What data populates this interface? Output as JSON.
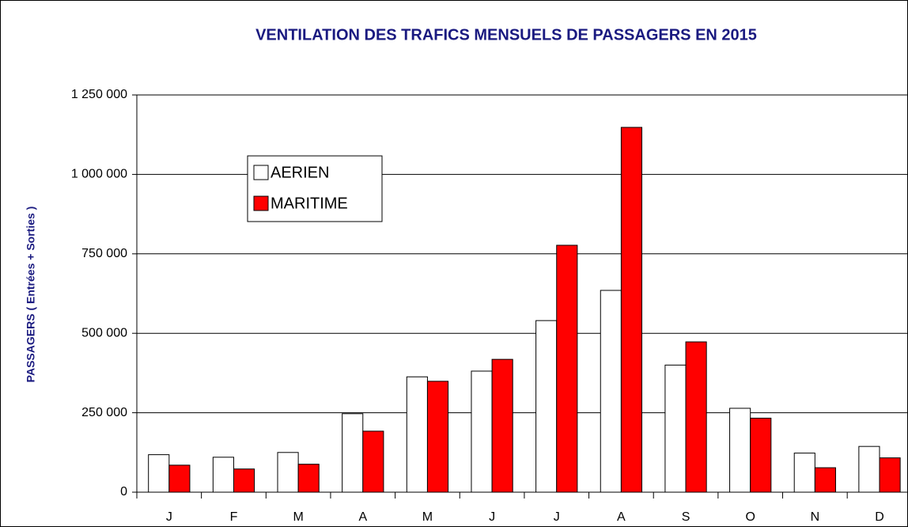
{
  "chart_data": {
    "type": "bar",
    "title": "VENTILATION DES TRAFICS MENSUELS DE PASSAGERS EN 2015",
    "y_label": "PASSAGERS  ( Entrées + Sorties )",
    "categories": [
      "J",
      "F",
      "M",
      "A",
      "M",
      "J",
      "J",
      "A",
      "S",
      "O",
      "N",
      "D"
    ],
    "series": [
      {
        "name": "AERIEN",
        "color": "#ffffff",
        "values": [
          118000,
          110000,
          125000,
          247000,
          363000,
          381000,
          540000,
          635000,
          400000,
          264000,
          123000,
          144000
        ]
      },
      {
        "name": "MARITIME",
        "color": "#ff0000",
        "values": [
          85000,
          73000,
          88000,
          192000,
          349000,
          418000,
          777000,
          1148000,
          473000,
          233000,
          77000,
          108000
        ]
      }
    ],
    "ylim": [
      0,
      1250000
    ],
    "yticks": [
      0,
      {
        "value": 250000,
        "label": "250 000"
      },
      {
        "value": 500000,
        "label": "500 000"
      },
      {
        "value": 750000,
        "label": "750 000"
      },
      {
        "value": 1000000,
        "label": "1 000 000"
      },
      {
        "value": 1250000,
        "label": "1 250 000"
      }
    ],
    "grid": true
  }
}
